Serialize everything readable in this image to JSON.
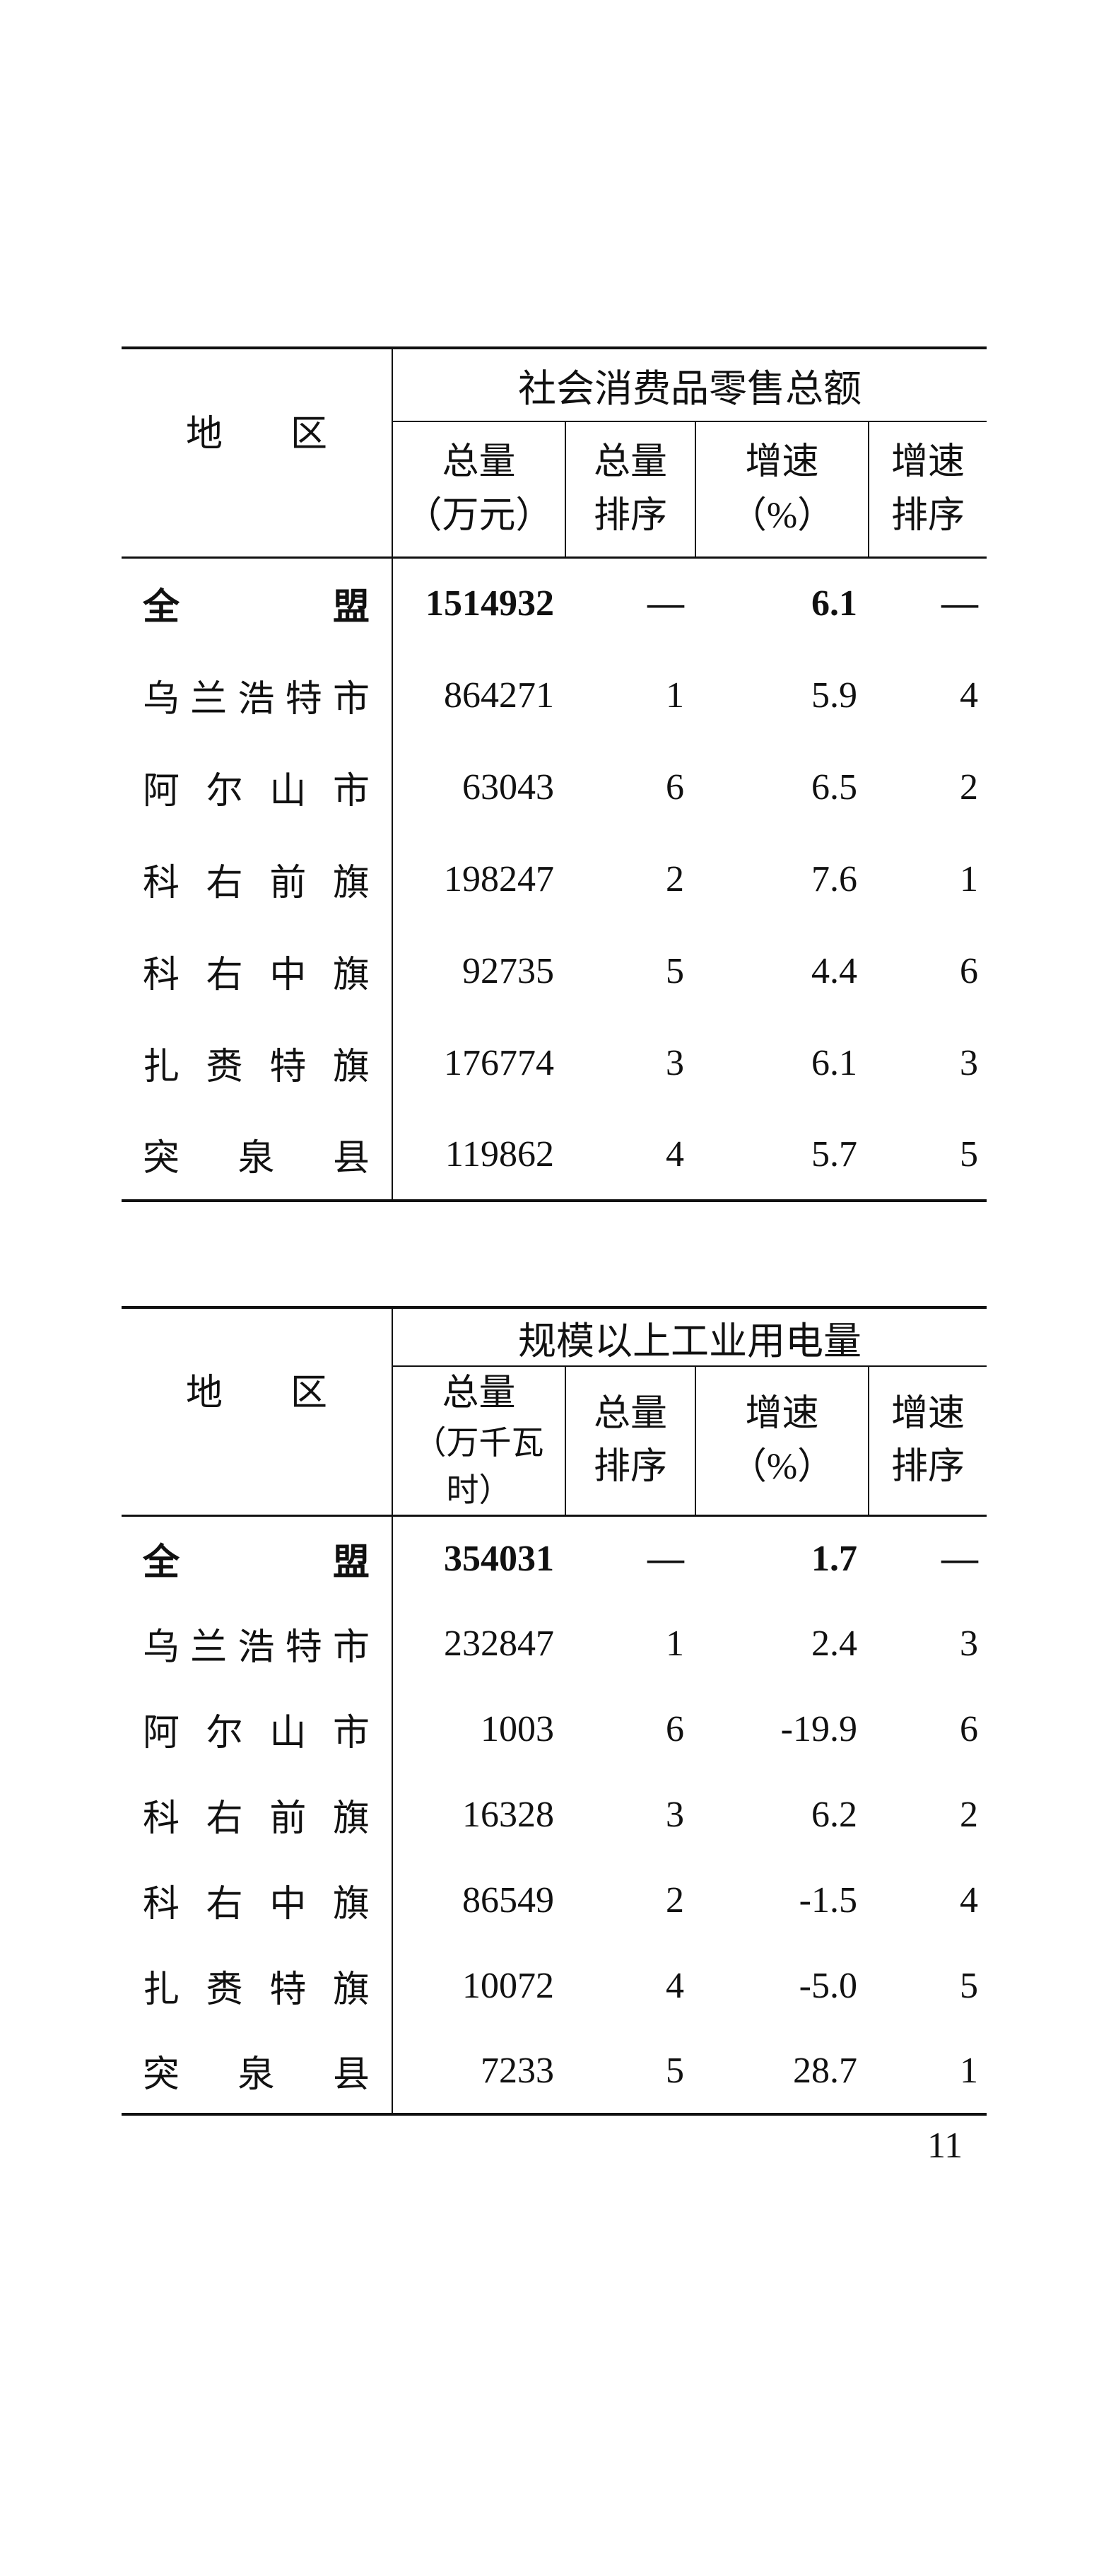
{
  "tables": [
    {
      "region_header": "地　区",
      "group_header": "社会消费品零售总额",
      "columns": [
        {
          "line1": "总量",
          "line2": "（万元）"
        },
        {
          "line1": "总量",
          "line2": "排序"
        },
        {
          "line1": "增速",
          "line2": "（%）"
        },
        {
          "line1": "增速",
          "line2": "排序"
        }
      ],
      "rows": [
        {
          "region": "全盟",
          "total": "1514932",
          "total_rank": "—",
          "growth": "6.1",
          "growth_rank": "—"
        },
        {
          "region": "乌兰浩特市",
          "total": "864271",
          "total_rank": "1",
          "growth": "5.9",
          "growth_rank": "4"
        },
        {
          "region": "阿尔山市",
          "total": "63043",
          "total_rank": "6",
          "growth": "6.5",
          "growth_rank": "2"
        },
        {
          "region": "科右前旗",
          "total": "198247",
          "total_rank": "2",
          "growth": "7.6",
          "growth_rank": "1"
        },
        {
          "region": "科右中旗",
          "total": "92735",
          "total_rank": "5",
          "growth": "4.4",
          "growth_rank": "6"
        },
        {
          "region": "扎赉特旗",
          "total": "176774",
          "total_rank": "3",
          "growth": "6.1",
          "growth_rank": "3"
        },
        {
          "region": "突泉县",
          "total": "119862",
          "total_rank": "4",
          "growth": "5.7",
          "growth_rank": "5"
        }
      ]
    },
    {
      "region_header": "地　区",
      "group_header": "规模以上工业用电量",
      "columns": [
        {
          "line1": "总量",
          "line2": "（万千瓦时）"
        },
        {
          "line1": "总量",
          "line2": "排序"
        },
        {
          "line1": "增速",
          "line2": "（%）"
        },
        {
          "line1": "增速",
          "line2": "排序"
        }
      ],
      "rows": [
        {
          "region": "全盟",
          "total": "354031",
          "total_rank": "—",
          "growth": "1.7",
          "growth_rank": "—"
        },
        {
          "region": "乌兰浩特市",
          "total": "232847",
          "total_rank": "1",
          "growth": "2.4",
          "growth_rank": "3"
        },
        {
          "region": "阿尔山市",
          "total": "1003",
          "total_rank": "6",
          "growth": "-19.9",
          "growth_rank": "6"
        },
        {
          "region": "科右前旗",
          "total": "16328",
          "total_rank": "3",
          "growth": "6.2",
          "growth_rank": "2"
        },
        {
          "region": "科右中旗",
          "total": "86549",
          "total_rank": "2",
          "growth": "-1.5",
          "growth_rank": "4"
        },
        {
          "region": "扎赉特旗",
          "total": "10072",
          "total_rank": "4",
          "growth": "-5.0",
          "growth_rank": "5"
        },
        {
          "region": "突泉县",
          "total": "7233",
          "total_rank": "5",
          "growth": "28.7",
          "growth_rank": "1"
        }
      ]
    }
  ],
  "page_number": "11"
}
